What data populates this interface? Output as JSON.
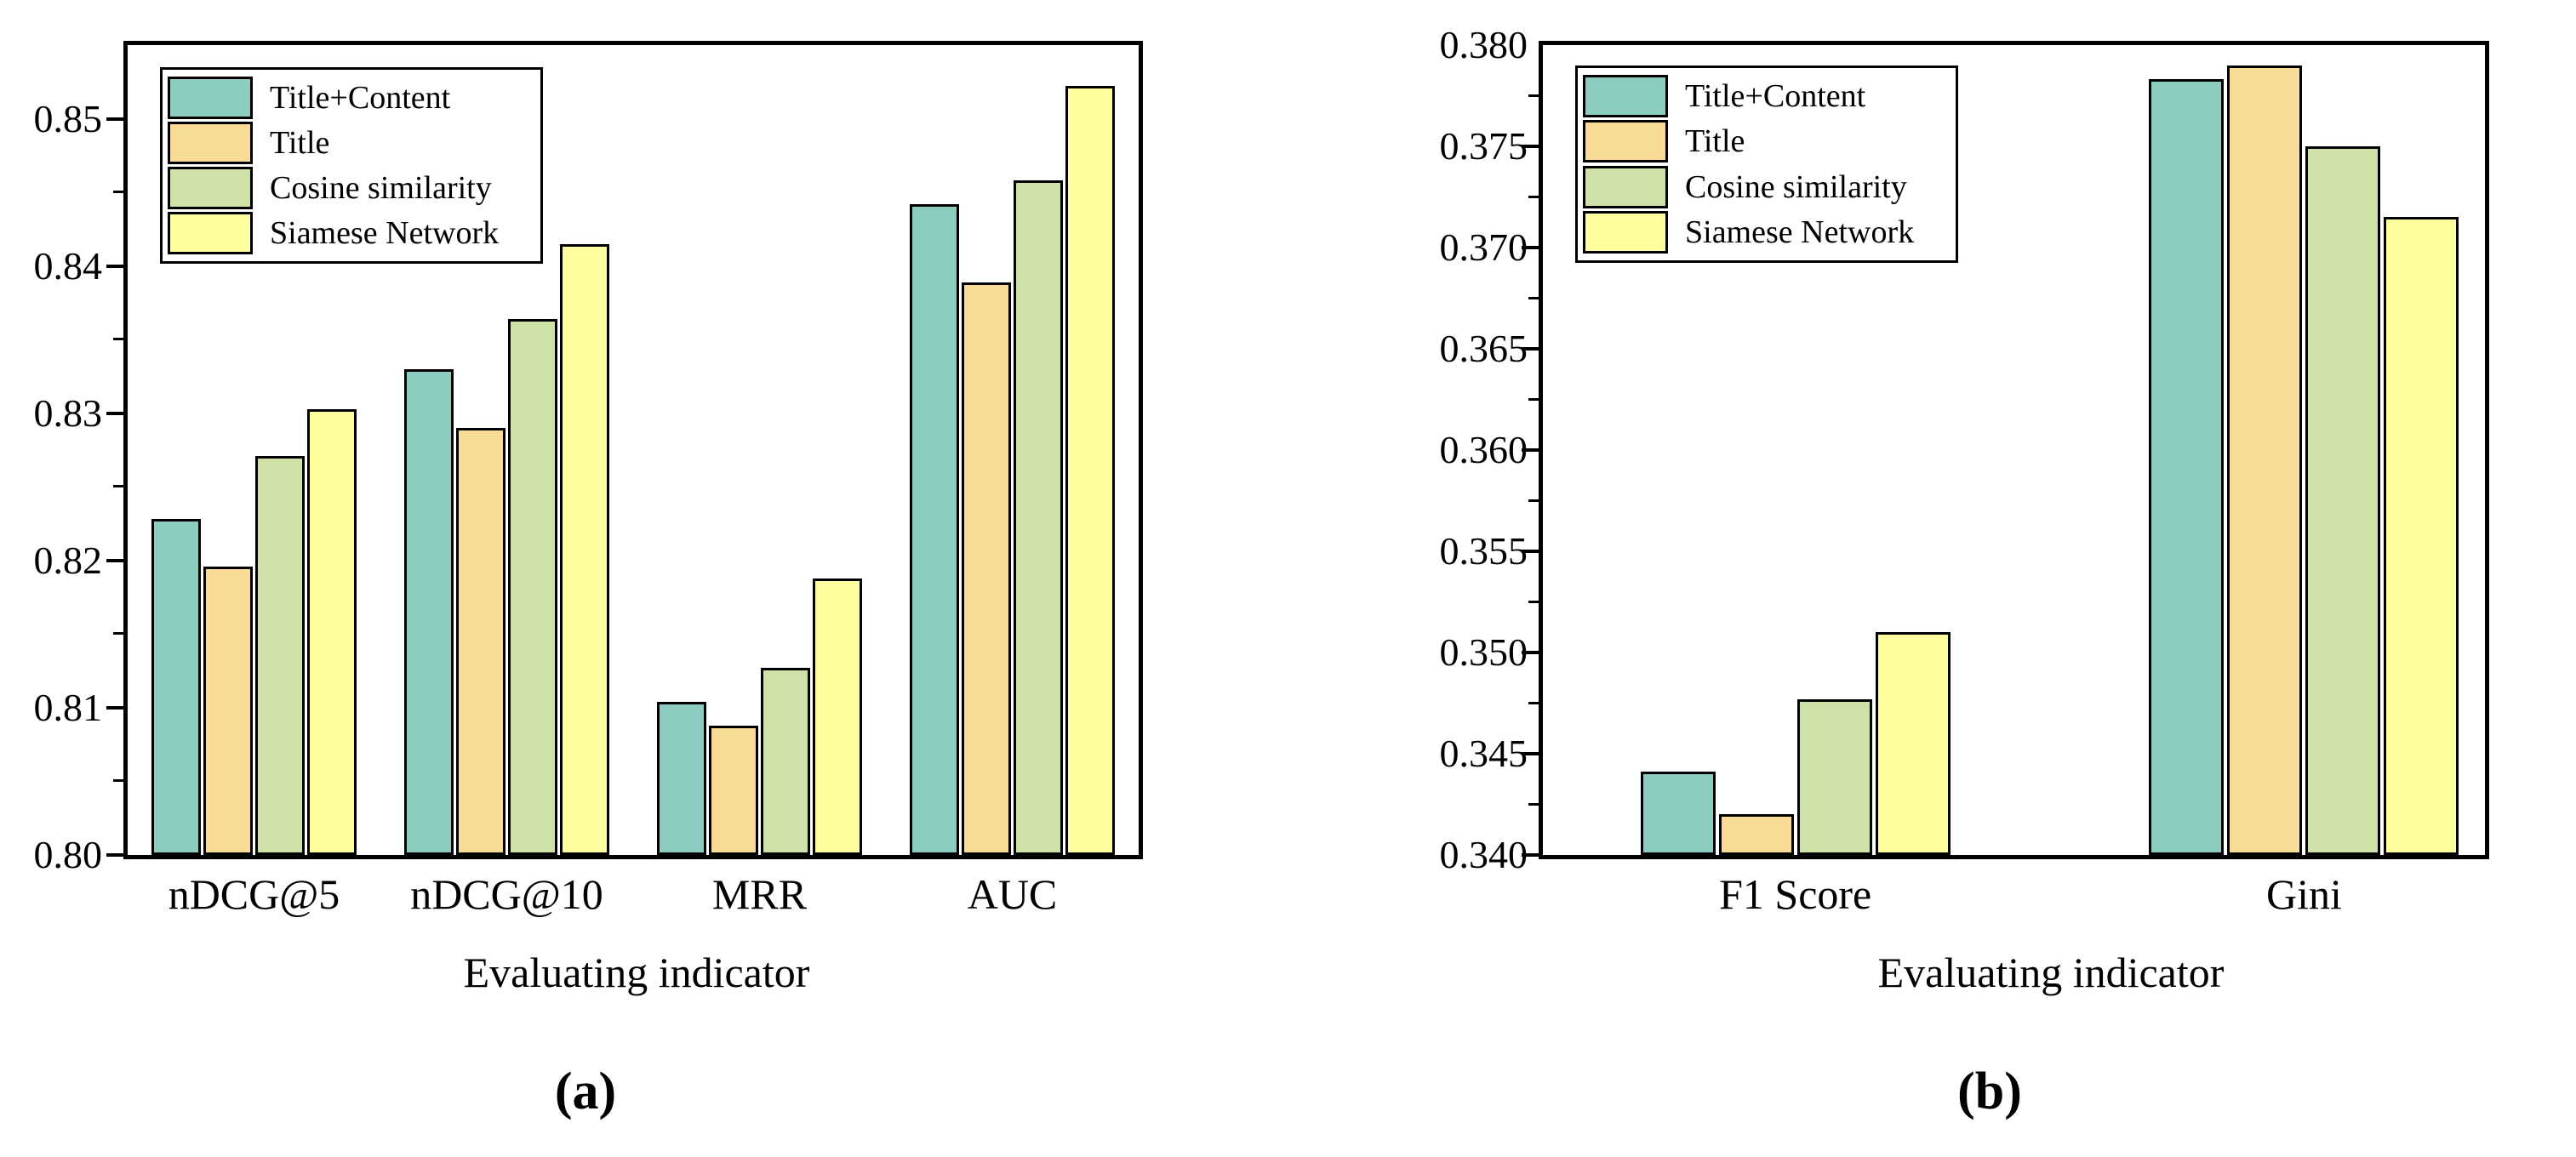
{
  "colors": {
    "axis": "#000000",
    "background": "#ffffff"
  },
  "chart_data": [
    {
      "id": "a",
      "type": "bar",
      "categories": [
        "nDCG@5",
        "nDCG@10",
        "MRR",
        "AUC"
      ],
      "series": [
        {
          "name": "Title+Content",
          "color": "#8DCCC1",
          "values": [
            0.8228,
            0.833,
            0.8104,
            0.8442
          ]
        },
        {
          "name": "Title",
          "color": "#F8DB94",
          "values": [
            0.8196,
            0.829,
            0.8088,
            0.8389
          ]
        },
        {
          "name": "Cosine similarity",
          "color": "#CEE2A8",
          "values": [
            0.8271,
            0.8364,
            0.8127,
            0.8458
          ]
        },
        {
          "name": "Siamese Network",
          "color": "#FEFE9E",
          "values": [
            0.8303,
            0.8415,
            0.8188,
            0.8522
          ]
        }
      ],
      "xlabel": "Evaluating indicator",
      "caption": "(a)",
      "ylim": [
        0.8,
        0.855
      ],
      "y_tick_labels": [
        "0.80",
        "0.81",
        "0.82",
        "0.83",
        "0.84",
        "0.85"
      ],
      "minor_tick_step": 0.005,
      "grid": false,
      "legend_position": "top-left"
    },
    {
      "id": "b",
      "type": "bar",
      "categories": [
        "F1 Score",
        "Gini"
      ],
      "series": [
        {
          "name": "Title+Content",
          "color": "#8DCCC1",
          "values": [
            0.3441,
            0.3783
          ]
        },
        {
          "name": "Title",
          "color": "#F8DB94",
          "values": [
            0.342,
            0.379
          ]
        },
        {
          "name": "Cosine similarity",
          "color": "#CEE2A8",
          "values": [
            0.3477,
            0.375
          ]
        },
        {
          "name": "Siamese Network",
          "color": "#FEFE9E",
          "values": [
            0.351,
            0.3715
          ]
        }
      ],
      "xlabel": "Evaluating indicator",
      "caption": "(b)",
      "ylim": [
        0.34,
        0.38
      ],
      "y_tick_labels": [
        "0.340",
        "0.345",
        "0.350",
        "0.355",
        "0.360",
        "0.365",
        "0.370",
        "0.375",
        "0.380"
      ],
      "minor_tick_step": 0.0025,
      "grid": false,
      "legend_position": "top-left"
    }
  ]
}
